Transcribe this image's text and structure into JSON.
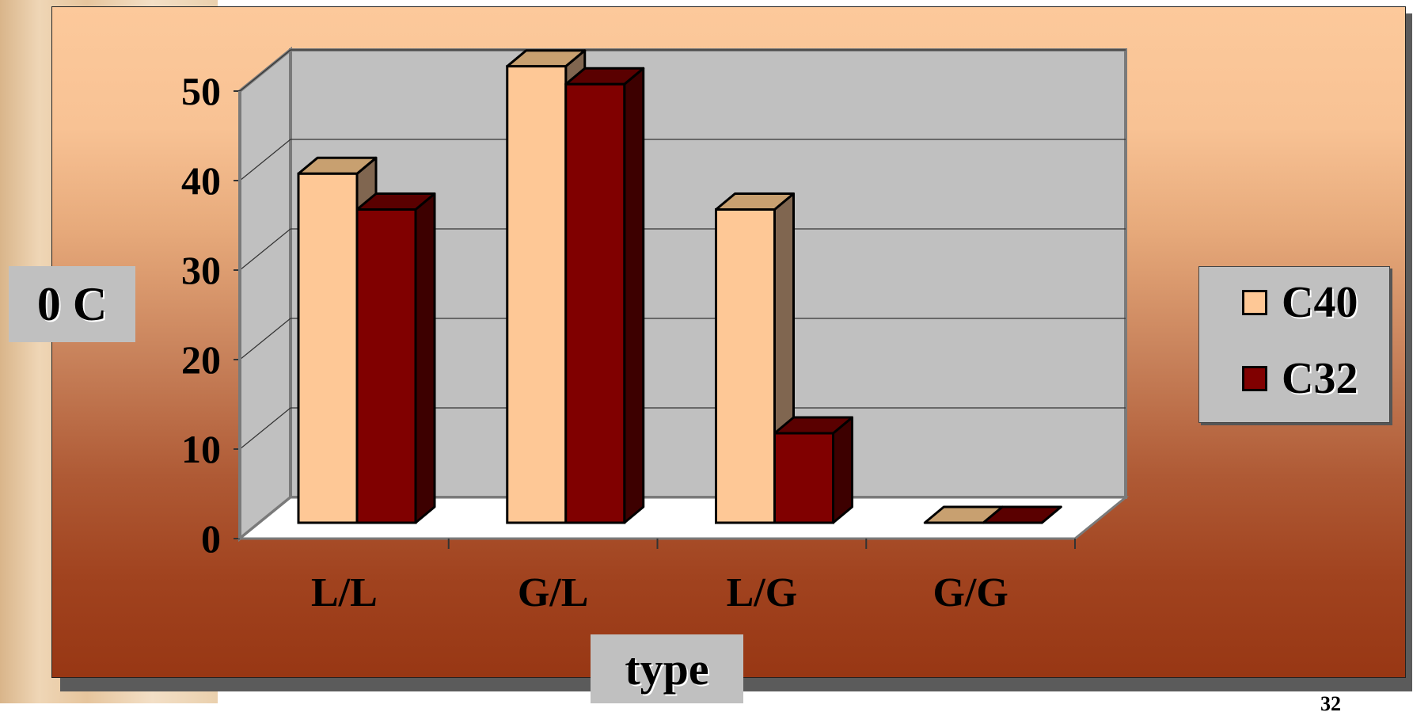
{
  "chart_data": {
    "type": "bar",
    "style": "3d-clustered-column",
    "categories": [
      "L/L",
      "G/L",
      "L/G",
      "G/G"
    ],
    "series": [
      {
        "name": "C40",
        "values": [
          39,
          51,
          35,
          0
        ],
        "color": "#fec896",
        "top_color": "#c8a070",
        "side_color": "#806650"
      },
      {
        "name": "C32",
        "values": [
          35,
          49,
          10,
          0
        ],
        "color": "#800000",
        "top_color": "#5a0000",
        "side_color": "#3d0000"
      }
    ],
    "ylim": [
      0,
      50
    ],
    "yticks": [
      "0",
      "10",
      "20",
      "30",
      "40",
      "50"
    ],
    "ylabel": "0 C",
    "xlabel": "type",
    "grid": true,
    "legend_position": "right"
  },
  "page": {
    "number": "32"
  }
}
